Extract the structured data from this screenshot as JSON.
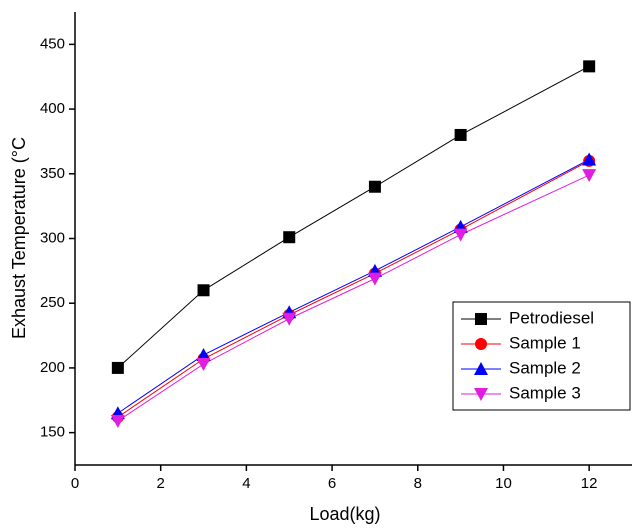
{
  "chart_data": {
    "type": "line",
    "x_label": "Load(kg)",
    "y_label": "Exhaust Temperature (°C",
    "x": [
      1,
      3,
      5,
      7,
      9,
      12
    ],
    "series": [
      {
        "name": "Petrodiesel",
        "color": "#000000",
        "marker": "square",
        "values": [
          200,
          260,
          301,
          340,
          380,
          433
        ]
      },
      {
        "name": "Sample 1",
        "color": "#ff0000",
        "marker": "circle",
        "values": [
          162,
          207,
          241,
          273,
          307,
          360
        ]
      },
      {
        "name": "Sample 2",
        "color": "#0000ff",
        "marker": "triangle-up",
        "values": [
          165,
          210,
          243,
          275,
          309,
          361
        ]
      },
      {
        "name": "Sample 3",
        "color": "#e01ee0",
        "marker": "triangle-down",
        "values": [
          159,
          203,
          238,
          269,
          303,
          349
        ]
      }
    ],
    "xlim": [
      0,
      13
    ],
    "xticks": [
      0,
      2,
      4,
      6,
      8,
      10,
      12
    ],
    "ylim": [
      125,
      475
    ],
    "yticks": [
      150,
      200,
      250,
      300,
      350,
      400,
      450
    ],
    "legend": "lower-right",
    "grid": false
  }
}
